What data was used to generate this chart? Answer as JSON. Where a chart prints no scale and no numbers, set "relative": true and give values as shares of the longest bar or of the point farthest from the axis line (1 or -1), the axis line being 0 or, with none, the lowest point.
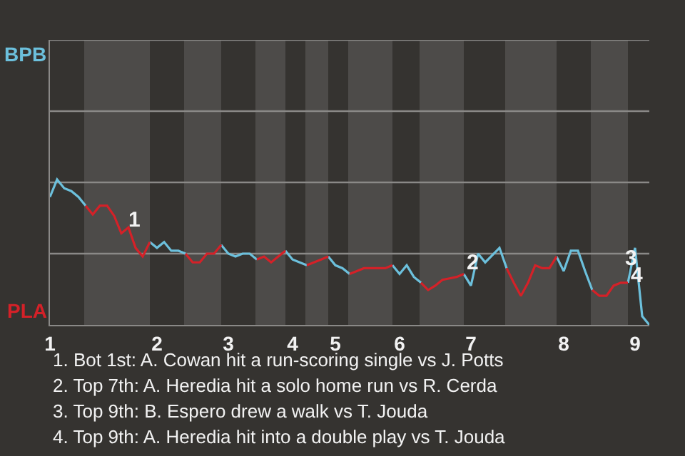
{
  "chart_data": {
    "type": "line",
    "relative": true,
    "categories": [
      "1",
      null,
      null,
      null,
      null,
      null,
      null,
      null,
      null,
      null,
      null,
      null,
      null,
      null,
      null,
      "2",
      null,
      null,
      null,
      null,
      null,
      null,
      null,
      null,
      null,
      "3",
      null,
      null,
      null,
      null,
      null,
      null,
      null,
      null,
      "4",
      null,
      null,
      null,
      null,
      null,
      "5",
      null,
      null,
      null,
      null,
      null,
      null,
      null,
      null,
      "6",
      null,
      null,
      null,
      null,
      null,
      null,
      null,
      null,
      null,
      "7",
      null,
      null,
      null,
      null,
      null,
      null,
      null,
      null,
      null,
      null,
      null,
      null,
      "8",
      null,
      null,
      null,
      null,
      null,
      null,
      null,
      null,
      null,
      "9",
      null,
      null
    ],
    "grid": false,
    "marker": "none",
    "line_style": "solid",
    "series": [
      {
        "color": "#6cc0dc",
        "values": [
          0.88,
          1,
          0.94,
          0.92,
          0.88,
          0.82,
          null,
          null,
          null,
          null,
          null,
          null,
          null,
          null,
          0.57,
          0.53,
          0.57,
          0.51,
          0.51,
          0.49,
          null,
          null,
          null,
          null,
          0.55,
          0.49,
          0.47,
          0.49,
          0.49,
          0.45,
          null,
          null,
          null,
          0.51,
          0.45,
          0.43,
          0.41,
          null,
          null,
          0.47,
          0.41,
          0.39,
          0.35,
          null,
          null,
          null,
          null,
          null,
          0.41,
          0.35,
          0.41,
          0.33,
          0.29,
          null,
          null,
          null,
          null,
          null,
          0.35,
          0.27,
          0.49,
          0.43,
          0.48,
          0.53,
          0.39,
          null,
          null,
          null,
          null,
          null,
          null,
          0.47,
          0.37,
          0.51,
          0.51,
          0.37,
          0.24,
          null,
          null,
          null,
          null,
          0.29,
          0.53,
          0.06,
          0
        ]
      },
      {
        "color": "#d42128",
        "values": [
          null,
          null,
          null,
          null,
          null,
          0.82,
          0.76,
          0.82,
          0.82,
          0.75,
          0.63,
          0.67,
          0.53,
          0.47,
          0.57,
          null,
          null,
          null,
          null,
          0.49,
          0.43,
          0.43,
          0.49,
          0.49,
          0.55,
          null,
          null,
          null,
          null,
          0.45,
          0.47,
          0.43,
          0.47,
          0.51,
          null,
          null,
          0.41,
          0.43,
          0.45,
          0.47,
          null,
          null,
          0.35,
          0.37,
          0.39,
          0.39,
          0.39,
          0.39,
          0.41,
          null,
          null,
          null,
          0.29,
          0.24,
          0.27,
          0.31,
          0.32,
          0.33,
          0.35,
          null,
          null,
          null,
          null,
          null,
          0.39,
          0.29,
          0.2,
          0.29,
          0.41,
          0.39,
          0.39,
          0.47,
          null,
          null,
          null,
          null,
          0.24,
          0.2,
          0.2,
          0.27,
          0.29,
          0.29,
          null,
          null,
          null
        ]
      }
    ],
    "ref_lines": [
      {
        "axis": "y",
        "value": 0.49,
        "color": "#8a8987"
      },
      {
        "axis": "y",
        "value": 0.98,
        "color": "#8a8987"
      },
      {
        "axis": "y",
        "value": 1.47,
        "color": "#8a8987"
      },
      {
        "axis": "y",
        "value": 1.96,
        "color": "#8a8987"
      }
    ],
    "annotations": [
      "BPB",
      "PLA",
      "1",
      "2",
      "3",
      "4",
      "1. Bot 1st: A. Cowan hit a run-scoring single vs J. Potts",
      "2. Top 7th: A. Heredia hit a solo home run vs R. Cerda",
      "3. Top 9th: B. Espero drew a walk vs T. Jouda",
      "4. Top 9th: A. Heredia hit into a double play vs T. Jouda"
    ]
  }
}
